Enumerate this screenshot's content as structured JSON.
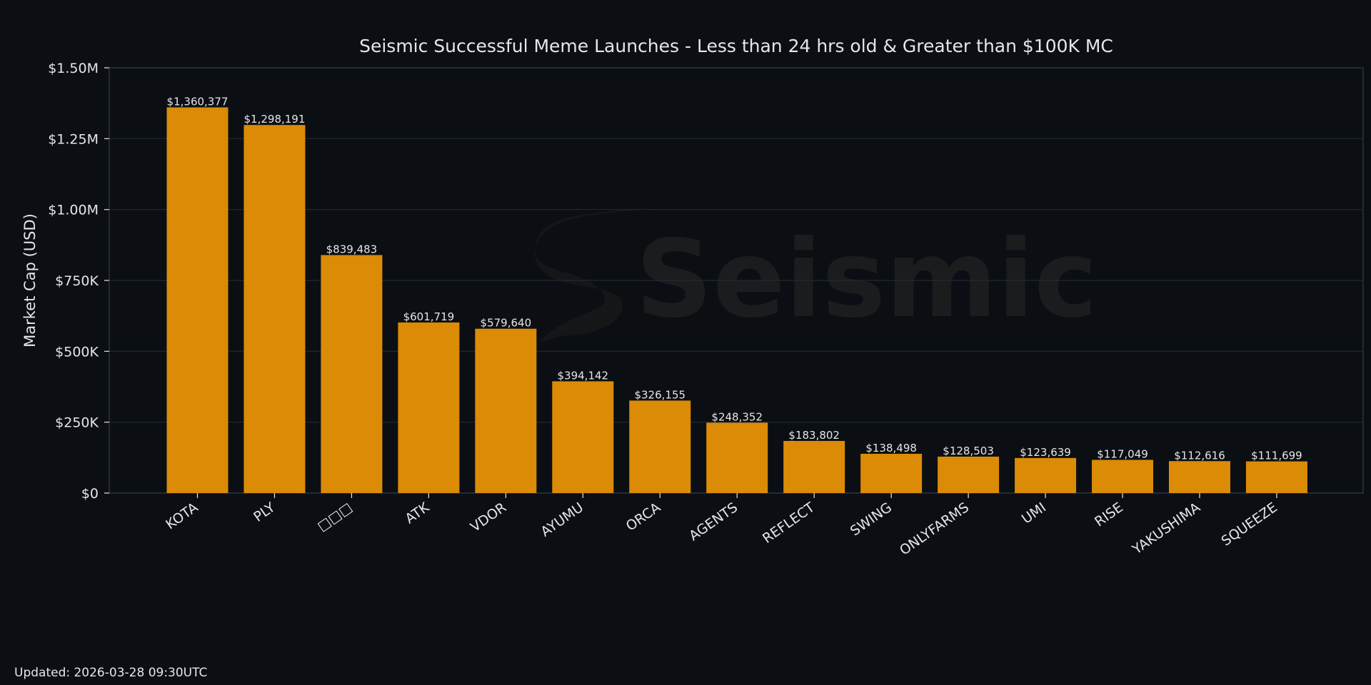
{
  "chart_data": {
    "type": "bar",
    "title": "Seismic Successful Meme Launches - Less than 24 hrs old & Greater than $100K MC",
    "xlabel": "",
    "ylabel": "Market Cap (USD)",
    "ylim": [
      0,
      1500000
    ],
    "yticks": [
      {
        "value": 0,
        "label": "$0"
      },
      {
        "value": 250000,
        "label": "$250K"
      },
      {
        "value": 500000,
        "label": "$500K"
      },
      {
        "value": 750000,
        "label": "$750K"
      },
      {
        "value": 1000000,
        "label": "$1.00M"
      },
      {
        "value": 1250000,
        "label": "$1.25M"
      },
      {
        "value": 1500000,
        "label": "$1.50M"
      }
    ],
    "grid": true,
    "categories": [
      "KOTA",
      "PLY",
      "□□□",
      "ATK",
      "VDOR",
      "AYUMU",
      "ORCA",
      "AGENTS",
      "REFLECT",
      "SWING",
      "ONLYFARMS",
      "UMI",
      "RISE",
      "YAKUSHIMA",
      "SQUEEZE"
    ],
    "values": [
      1360377,
      1298191,
      839483,
      601719,
      579640,
      394142,
      326155,
      248352,
      183802,
      138498,
      128503,
      123639,
      117049,
      112616,
      111699
    ],
    "value_labels": [
      "$1,360,377",
      "$1,298,191",
      "$839,483",
      "$601,719",
      "$579,640",
      "$394,142",
      "$326,155",
      "$248,352",
      "$183,802",
      "$138,498",
      "$128,503",
      "$123,639",
      "$117,049",
      "$112,616",
      "$111,699"
    ],
    "watermark": "Seismic"
  },
  "footer": {
    "updated": "Updated: 2026-03-28 09:30UTC"
  },
  "colors": {
    "background": "#0b0e13",
    "bar": "#db8b06",
    "grid": "#222a36",
    "text": "#e6e6e6"
  }
}
